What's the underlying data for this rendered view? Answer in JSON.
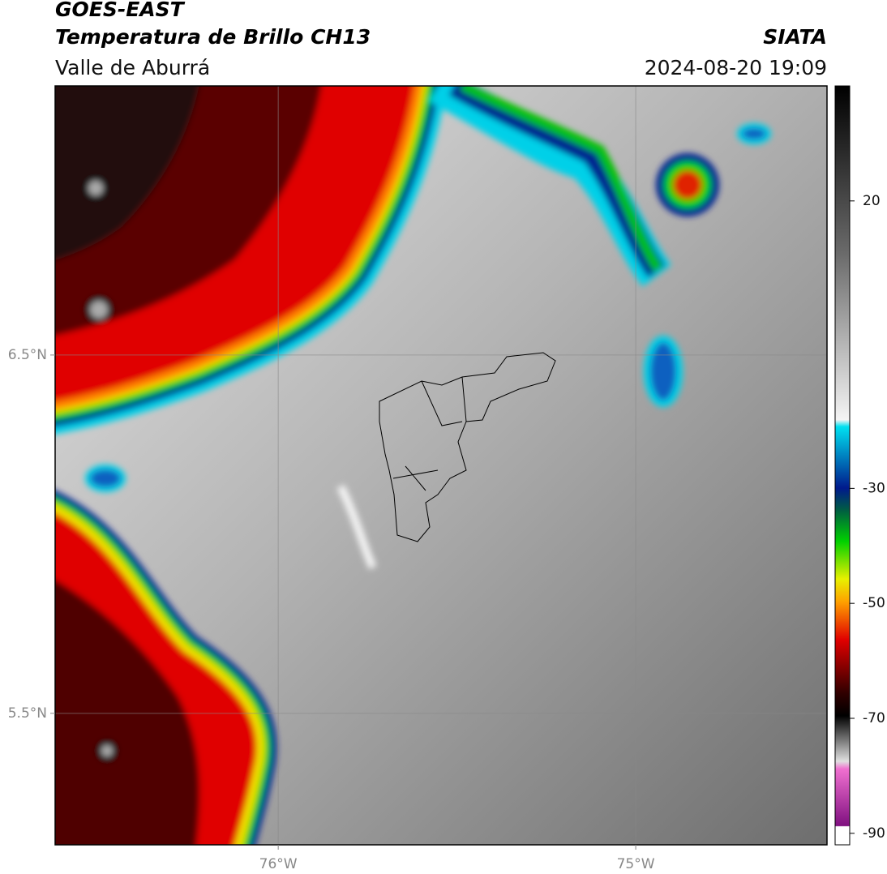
{
  "header": {
    "title": "GOES-EAST",
    "subtitle": "Temperatura de Brillo CH13",
    "region": "Valle de Aburrá",
    "source": "SIATA",
    "datetime": "2024-08-20 19:09"
  },
  "map": {
    "lonlim": [
      -76.624,
      -74.465
    ],
    "latlim": [
      5.133,
      7.251
    ],
    "lon_ticks": [
      {
        "value": -76,
        "label": "76°W"
      },
      {
        "value": -75,
        "label": "75°W"
      }
    ],
    "lat_ticks": [
      {
        "value": 6.5,
        "label": "6.5°N"
      },
      {
        "value": 5.5,
        "label": "5.5°N"
      }
    ],
    "grid": true
  },
  "colorbar": {
    "lim": [
      -92,
      40
    ],
    "ticks": [
      20,
      -30,
      -50,
      -70,
      -90
    ]
  }
}
